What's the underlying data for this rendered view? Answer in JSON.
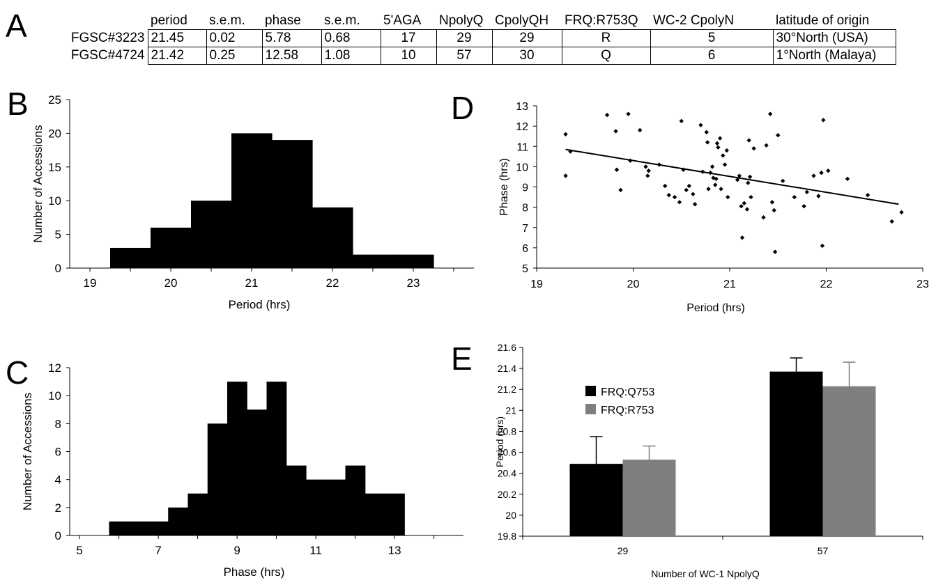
{
  "panels": {
    "a": "A",
    "b": "B",
    "c": "C",
    "d": "D",
    "e": "E"
  },
  "table": {
    "headers": [
      "period",
      "s.e.m.",
      "phase",
      "s.e.m.",
      "5'AGA",
      "NpolyQ",
      "CpolyQH",
      "FRQ:R753Q",
      "WC-2 CpolyN",
      "latitude of origin"
    ],
    "rows": [
      {
        "label": "FGSC#3223",
        "cells": [
          "21.45",
          "0.02",
          "5.78",
          "0.68",
          "17",
          "29",
          "29",
          "R",
          "5",
          "30°North (USA)"
        ]
      },
      {
        "label": "FGSC#4724",
        "cells": [
          "21.42",
          "0.25",
          "12.58",
          "1.08",
          "10",
          "57",
          "30",
          "Q",
          "6",
          "1°North (Malaya)"
        ]
      }
    ]
  },
  "chart_data": [
    {
      "id": "B",
      "type": "bar",
      "xlabel": "Period (hrs)",
      "ylabel": "Number of Accessions",
      "xlim": [
        18.75,
        23.75
      ],
      "ylim": [
        0,
        25
      ],
      "xticks": [
        "19",
        "20",
        "21",
        "22",
        "23"
      ],
      "yticks": [
        "0",
        "5",
        "10",
        "15",
        "20",
        "25"
      ],
      "bin_width": 0.5,
      "bins": [
        {
          "start": 19.25,
          "count": 3
        },
        {
          "start": 19.75,
          "count": 6
        },
        {
          "start": 20.25,
          "count": 10
        },
        {
          "start": 20.75,
          "count": 20
        },
        {
          "start": 21.25,
          "count": 19
        },
        {
          "start": 21.75,
          "count": 9
        },
        {
          "start": 22.25,
          "count": 2
        },
        {
          "start": 22.75,
          "count": 2
        }
      ]
    },
    {
      "id": "C",
      "type": "bar",
      "xlabel": "Phase (hrs)",
      "ylabel": "Number of Accessions",
      "xlim": [
        4.75,
        14.75
      ],
      "ylim": [
        0,
        12
      ],
      "xticks": [
        "5",
        "7",
        "9",
        "11",
        "13"
      ],
      "yticks": [
        "0",
        "2",
        "4",
        "6",
        "8",
        "10",
        "12"
      ],
      "bin_width": 0.5,
      "bins": [
        {
          "start": 5.75,
          "count": 1
        },
        {
          "start": 6.25,
          "count": 1
        },
        {
          "start": 6.75,
          "count": 1
        },
        {
          "start": 7.25,
          "count": 2
        },
        {
          "start": 7.75,
          "count": 3
        },
        {
          "start": 8.25,
          "count": 8
        },
        {
          "start": 8.75,
          "count": 11
        },
        {
          "start": 9.25,
          "count": 9
        },
        {
          "start": 9.75,
          "count": 11
        },
        {
          "start": 10.25,
          "count": 5
        },
        {
          "start": 10.75,
          "count": 4
        },
        {
          "start": 11.25,
          "count": 4
        },
        {
          "start": 11.75,
          "count": 5
        },
        {
          "start": 12.25,
          "count": 3
        },
        {
          "start": 12.75,
          "count": 3
        }
      ]
    },
    {
      "id": "D",
      "type": "scatter",
      "xlabel": "Period (hrs)",
      "ylabel": "Phase (hrs)",
      "xlim": [
        19,
        23
      ],
      "ylim": [
        5,
        13
      ],
      "xticks": [
        "19",
        "20",
        "21",
        "22",
        "23"
      ],
      "yticks": [
        "5",
        "6",
        "7",
        "8",
        "9",
        "10",
        "11",
        "12",
        "13"
      ],
      "trendline": {
        "x": [
          19.3,
          22.75
        ],
        "y": [
          10.85,
          8.15
        ]
      },
      "points": [
        [
          19.3,
          11.6
        ],
        [
          19.35,
          10.75
        ],
        [
          19.3,
          9.55
        ],
        [
          19.73,
          12.55
        ],
        [
          19.82,
          11.75
        ],
        [
          19.83,
          9.85
        ],
        [
          19.87,
          8.85
        ],
        [
          19.95,
          12.6
        ],
        [
          19.97,
          10.3
        ],
        [
          20.07,
          11.8
        ],
        [
          20.13,
          10.0
        ],
        [
          20.15,
          9.55
        ],
        [
          20.16,
          9.8
        ],
        [
          20.27,
          10.1
        ],
        [
          20.33,
          9.05
        ],
        [
          20.37,
          8.6
        ],
        [
          20.43,
          8.5
        ],
        [
          20.48,
          8.25
        ],
        [
          20.5,
          12.25
        ],
        [
          20.52,
          9.85
        ],
        [
          20.55,
          8.85
        ],
        [
          20.58,
          9.05
        ],
        [
          20.62,
          8.65
        ],
        [
          20.64,
          8.15
        ],
        [
          20.7,
          12.05
        ],
        [
          20.72,
          9.75
        ],
        [
          20.76,
          11.7
        ],
        [
          20.77,
          11.2
        ],
        [
          20.78,
          8.9
        ],
        [
          20.8,
          9.7
        ],
        [
          20.82,
          10.0
        ],
        [
          20.83,
          9.45
        ],
        [
          20.85,
          9.1
        ],
        [
          20.86,
          9.4
        ],
        [
          20.87,
          11.15
        ],
        [
          20.88,
          10.95
        ],
        [
          20.9,
          11.4
        ],
        [
          20.91,
          8.9
        ],
        [
          20.93,
          10.55
        ],
        [
          20.95,
          10.1
        ],
        [
          20.97,
          10.8
        ],
        [
          20.98,
          8.5
        ],
        [
          21.08,
          9.35
        ],
        [
          21.1,
          9.55
        ],
        [
          21.12,
          8.05
        ],
        [
          21.13,
          6.5
        ],
        [
          21.15,
          8.2
        ],
        [
          21.18,
          7.9
        ],
        [
          21.19,
          9.2
        ],
        [
          21.2,
          11.3
        ],
        [
          21.21,
          9.5
        ],
        [
          21.22,
          8.5
        ],
        [
          21.25,
          10.9
        ],
        [
          21.35,
          7.5
        ],
        [
          21.38,
          11.05
        ],
        [
          21.42,
          12.6
        ],
        [
          21.44,
          8.25
        ],
        [
          21.46,
          7.85
        ],
        [
          21.47,
          5.8
        ],
        [
          21.5,
          11.55
        ],
        [
          21.55,
          9.3
        ],
        [
          21.67,
          8.5
        ],
        [
          21.77,
          8.05
        ],
        [
          21.8,
          8.75
        ],
        [
          21.87,
          9.55
        ],
        [
          21.92,
          8.55
        ],
        [
          21.95,
          9.7
        ],
        [
          21.96,
          6.1
        ],
        [
          21.97,
          12.3
        ],
        [
          22.02,
          9.8
        ],
        [
          22.22,
          9.4
        ],
        [
          22.43,
          8.6
        ],
        [
          22.68,
          7.3
        ],
        [
          22.78,
          7.75
        ]
      ]
    },
    {
      "id": "E",
      "type": "bar",
      "xlabel": "Number of WC-1 NpolyQ",
      "ylabel": "Period (hrs)",
      "ylim": [
        19.8,
        21.6
      ],
      "yticks": [
        "19.8",
        "20",
        "20.2",
        "20.4",
        "20.6",
        "20.8",
        "21",
        "21.2",
        "21.4",
        "21.6"
      ],
      "categories": [
        "29",
        "57"
      ],
      "legend_position": "upper-left",
      "series": [
        {
          "name": "FRQ:Q753",
          "color": "#000000",
          "values": [
            20.49,
            21.37
          ],
          "errors": [
            0.26,
            0.13
          ]
        },
        {
          "name": "FRQ:R753",
          "color": "#7f7f7f",
          "values": [
            20.53,
            21.23
          ],
          "errors": [
            0.13,
            0.23
          ]
        }
      ]
    }
  ]
}
